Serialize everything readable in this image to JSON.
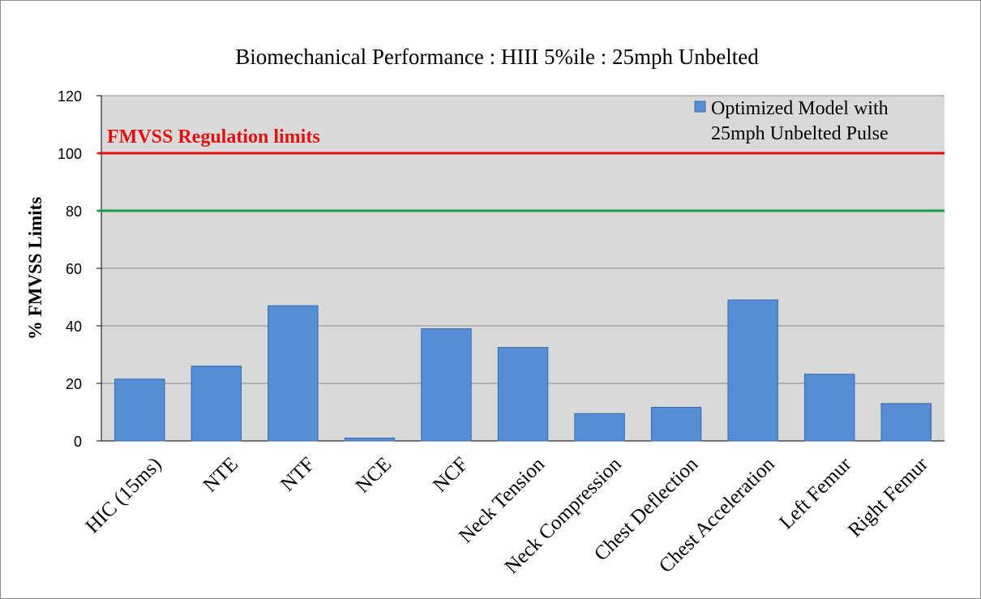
{
  "chart_data": {
    "type": "bar",
    "title": "Biomechanical Performance : HIII 5%ile : 25mph Unbelted",
    "xlabel": "",
    "ylabel": "% FMVSS Limits",
    "ylim": [
      0,
      120
    ],
    "yticks": [
      "0",
      "20",
      "40",
      "60",
      "80",
      "100",
      "120"
    ],
    "grid": true,
    "legend_position": "top-right",
    "categories": [
      "HIC (15ms)",
      "NTE",
      "NTF",
      "NCE",
      "NCF",
      "Neck Tension",
      "Neck Compression",
      "Chest Deflection",
      "Chest Acceleration",
      "Left Femur",
      "Right Femur"
    ],
    "series": [
      {
        "name": "Optimized Model with 25mph Unbelted Pulse",
        "legend_lines": [
          "Optimized Model with",
          "25mph Unbelted Pulse"
        ],
        "color": "#558ed5",
        "values": [
          21.5,
          26,
          47,
          1,
          39,
          32.5,
          9.5,
          11.7,
          49,
          23.2,
          13
        ]
      }
    ],
    "reference_lines": [
      {
        "value": 100,
        "color": "#e31010",
        "label": "FMVSS Regulation limits"
      },
      {
        "value": 80,
        "color": "#1f9a4a"
      }
    ],
    "plot_background": "#d9d9d9",
    "bar_border": "#3a6aa8",
    "gridline_color": "#8c8c8c"
  }
}
